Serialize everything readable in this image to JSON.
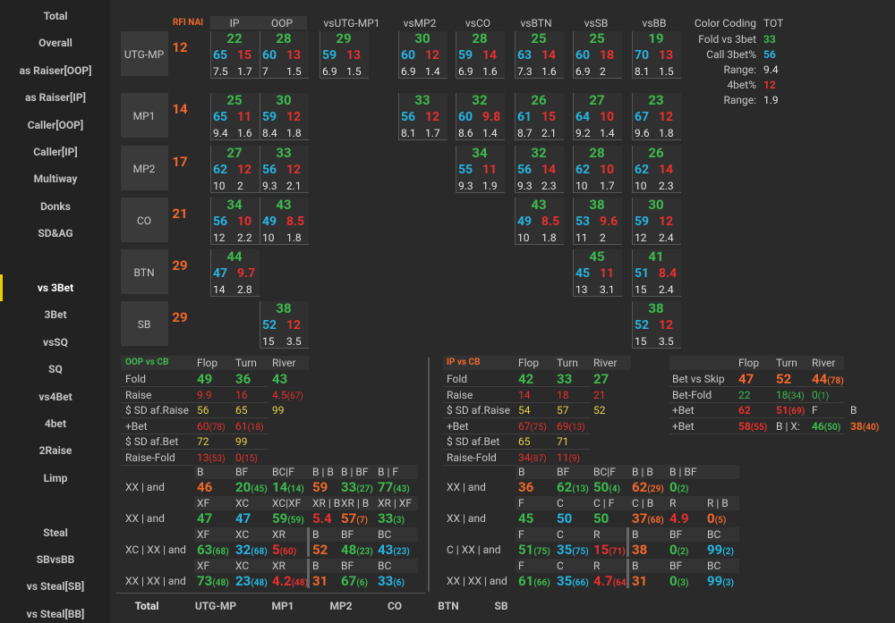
{
  "sidebar": {
    "groups": [
      [
        "Total",
        "Overall",
        "as Raiser[OOP]",
        "as Raiser[IP]",
        "Caller[OOP]",
        "Caller[IP]",
        "Multiway",
        "Donks",
        "SD&AG"
      ],
      [
        "vs 3Bet",
        "3Bet",
        "vsSQ",
        "SQ",
        "vs4Bet",
        "4bet",
        "2Raise",
        "Limp"
      ],
      [
        "Steal",
        "SBvsBB",
        "vs Steal[SB]",
        "vs Steal[BB]"
      ]
    ],
    "selected": [
      1,
      0
    ]
  },
  "matrix": {
    "rfi_label": "RFI NAI",
    "columns": [
      "IP",
      "OOP",
      "vsUTG-MP1",
      "vsMP2",
      "vsCO",
      "vsBTN",
      "vsSB",
      "vsBB"
    ],
    "rows": [
      {
        "label": "UTG-MP",
        "rfi": 12,
        "cells": [
          {
            "fold": 22,
            "call": 65,
            "fourbet": 15,
            "call_range": 7.5,
            "fourbet_range": 1.7
          },
          {
            "fold": 28,
            "call": 60,
            "fourbet": 13,
            "call_range": 7,
            "fourbet_range": 1.5
          },
          {
            "fold": 29,
            "call": 59,
            "fourbet": 13,
            "call_range": 6.9,
            "fourbet_range": 1.5
          },
          {
            "fold": 30,
            "call": 60,
            "fourbet": 12,
            "call_range": 6.9,
            "fourbet_range": 1.4
          },
          {
            "fold": 28,
            "call": 59,
            "fourbet": 14,
            "call_range": 6.9,
            "fourbet_range": 1.6
          },
          {
            "fold": 25,
            "call": 63,
            "fourbet": 14,
            "call_range": 7.3,
            "fourbet_range": 1.6
          },
          {
            "fold": 25,
            "call": 60,
            "fourbet": 18,
            "call_range": 6.9,
            "fourbet_range": 2
          },
          {
            "fold": 19,
            "call": 70,
            "fourbet": 13,
            "call_range": 8.1,
            "fourbet_range": 1.5
          }
        ]
      },
      {
        "label": "MP1",
        "rfi": 14,
        "cells": [
          {
            "fold": 25,
            "call": 65,
            "fourbet": 11,
            "call_range": 9.4,
            "fourbet_range": 1.6
          },
          {
            "fold": 30,
            "call": 59,
            "fourbet": 12,
            "call_range": 8.4,
            "fourbet_range": 1.8
          },
          null,
          {
            "fold": 33,
            "call": 56,
            "fourbet": 12,
            "call_range": 8.1,
            "fourbet_range": 1.7
          },
          {
            "fold": 32,
            "call": 60,
            "fourbet": 9.8,
            "call_range": 8.6,
            "fourbet_range": 1.4
          },
          {
            "fold": 26,
            "call": 61,
            "fourbet": 15,
            "call_range": 8.7,
            "fourbet_range": 2.1
          },
          {
            "fold": 27,
            "call": 64,
            "fourbet": 10,
            "call_range": 9.2,
            "fourbet_range": 1.4
          },
          {
            "fold": 23,
            "call": 67,
            "fourbet": 12,
            "call_range": 9.6,
            "fourbet_range": 1.8
          }
        ]
      },
      {
        "label": "MP2",
        "rfi": 17,
        "cells": [
          {
            "fold": 27,
            "call": 62,
            "fourbet": 12,
            "call_range": 10,
            "fourbet_range": 2
          },
          {
            "fold": 33,
            "call": 56,
            "fourbet": 12,
            "call_range": 9.3,
            "fourbet_range": 2.1
          },
          null,
          null,
          {
            "fold": 34,
            "call": 55,
            "fourbet": 11,
            "call_range": 9.3,
            "fourbet_range": 1.9
          },
          {
            "fold": 32,
            "call": 56,
            "fourbet": 14,
            "call_range": 9.3,
            "fourbet_range": 2.3
          },
          {
            "fold": 28,
            "call": 62,
            "fourbet": 10,
            "call_range": 10,
            "fourbet_range": 1.7
          },
          {
            "fold": 26,
            "call": 62,
            "fourbet": 14,
            "call_range": 10,
            "fourbet_range": 2.3
          }
        ]
      },
      {
        "label": "CO",
        "rfi": 21,
        "cells": [
          {
            "fold": 34,
            "call": 56,
            "fourbet": 10,
            "call_range": 12,
            "fourbet_range": 2.2
          },
          {
            "fold": 43,
            "call": 49,
            "fourbet": 8.5,
            "call_range": 10,
            "fourbet_range": 1.8
          },
          null,
          null,
          null,
          {
            "fold": 43,
            "call": 49,
            "fourbet": 8.5,
            "call_range": 10,
            "fourbet_range": 1.8
          },
          {
            "fold": 38,
            "call": 53,
            "fourbet": 9.6,
            "call_range": 11,
            "fourbet_range": 2
          },
          {
            "fold": 30,
            "call": 59,
            "fourbet": 12,
            "call_range": 12,
            "fourbet_range": 2.4
          }
        ]
      },
      {
        "label": "BTN",
        "rfi": 29,
        "cells": [
          {
            "fold": 44,
            "call": 47,
            "fourbet": 9.7,
            "call_range": 14,
            "fourbet_range": 2.8
          },
          null,
          null,
          null,
          null,
          null,
          {
            "fold": 45,
            "call": 45,
            "fourbet": 11,
            "call_range": 13,
            "fourbet_range": 3.1
          },
          {
            "fold": 41,
            "call": 51,
            "fourbet": 8.4,
            "call_range": 15,
            "fourbet_range": 2.4
          }
        ]
      },
      {
        "label": "SB",
        "rfi": 29,
        "cells": [
          null,
          {
            "fold": 38,
            "call": 52,
            "fourbet": 12,
            "call_range": 15,
            "fourbet_range": 3.5
          },
          null,
          null,
          null,
          null,
          null,
          {
            "fold": 38,
            "call": 52,
            "fourbet": 12,
            "call_range": 15,
            "fourbet_range": 3.5
          }
        ]
      }
    ]
  },
  "legend": {
    "title": "Color Coding",
    "total": "TOT",
    "items": [
      {
        "label": "Fold vs 3bet",
        "value": 33,
        "color": "green"
      },
      {
        "label": "Call 3bet%",
        "value": 56,
        "color": "blue"
      },
      {
        "label": "Range:",
        "value": 9.4,
        "color": "white"
      },
      {
        "label": "4bet%",
        "value": 12,
        "color": "red"
      },
      {
        "label": "Range:",
        "value": 1.9,
        "color": "white"
      }
    ]
  },
  "panels": [
    {
      "title": "OOP vs CB",
      "title_color": "green",
      "columns": [
        "Flop",
        "Turn",
        "River"
      ],
      "rows": [
        {
          "label": "Fold",
          "color": "green",
          "big": true,
          "values": [
            49,
            36,
            43
          ]
        },
        {
          "label": "Raise",
          "color": "red",
          "values": [
            9.9,
            16,
            "4.5(67)"
          ]
        },
        {
          "label": "$ SD af.Raise",
          "color": "yellow",
          "values": [
            56,
            65,
            99
          ]
        },
        {
          "label": "+Bet",
          "color": "red",
          "values": [
            "60(78)",
            "61(18)"
          ]
        },
        {
          "label": "$ SD af.Bet",
          "color": "yellow",
          "values": [
            72,
            99
          ]
        },
        {
          "label": "Raise-Fold",
          "color": "red",
          "values": [
            "13(53)",
            "0(15)"
          ]
        }
      ],
      "grid": [
        {
          "headers": [
            "B",
            "BF",
            "BC|F",
            "B | B",
            "B | BF",
            "B | F"
          ],
          "label": "XX | and",
          "cells": [
            {
              "t": "46",
              "c": "orange"
            },
            {
              "t": "20(45)",
              "c": "green"
            },
            {
              "t": "14(14)",
              "c": "green"
            },
            {
              "t": "59",
              "c": "orange"
            },
            {
              "t": "33(27)",
              "c": "green"
            },
            {
              "t": "77(43)",
              "c": "green"
            }
          ]
        },
        {
          "headers": [
            "XF",
            "XC",
            "XC|XF",
            "XR | B",
            "XR | B",
            "XR | XF"
          ],
          "label": "XX | and",
          "cells": [
            {
              "t": "47",
              "c": "green"
            },
            {
              "t": "47",
              "c": "blue"
            },
            {
              "t": "59(59)",
              "c": "green"
            },
            {
              "t": "5.4",
              "c": "red"
            },
            {
              "t": "57(7)",
              "c": "orange"
            },
            {
              "t": "33(3)",
              "c": "green"
            }
          ]
        },
        {
          "headers": [
            "XF",
            "XC",
            "XR",
            "B",
            "BF",
            "BC"
          ],
          "label": "XC | XX | and",
          "cells": [
            {
              "t": "63(68)",
              "c": "green"
            },
            {
              "t": "32(68)",
              "c": "blue"
            },
            {
              "t": "5(60)",
              "c": "red"
            },
            {
              "t": "52",
              "c": "orange"
            },
            {
              "t": "48(23)",
              "c": "green"
            },
            {
              "t": "43(23)",
              "c": "blue"
            }
          ]
        },
        {
          "headers": [
            "XF",
            "XC",
            "XR",
            "B",
            "BF",
            "BC"
          ],
          "label": "XX | XX | and",
          "cells": [
            {
              "t": "73(48)",
              "c": "green"
            },
            {
              "t": "23(48)",
              "c": "blue"
            },
            {
              "t": "4.2(48)",
              "c": "red"
            },
            {
              "t": "31",
              "c": "orange"
            },
            {
              "t": "67(6)",
              "c": "green"
            },
            {
              "t": "33(6)",
              "c": "blue"
            }
          ]
        }
      ]
    },
    {
      "title": "IP vs CB",
      "title_color": "orange",
      "columns": [
        "Flop",
        "Turn",
        "River"
      ],
      "rows": [
        {
          "label": "Fold",
          "color": "green",
          "big": true,
          "values": [
            42,
            33,
            27
          ]
        },
        {
          "label": "Raise",
          "color": "red",
          "values": [
            14,
            18,
            21
          ]
        },
        {
          "label": "$ SD af.Raise",
          "color": "yellow",
          "values": [
            54,
            57,
            52
          ]
        },
        {
          "label": "+Bet",
          "color": "red",
          "values": [
            "67(75)",
            "69(13)"
          ]
        },
        {
          "label": "$ SD af.Bet",
          "color": "yellow",
          "values": [
            65,
            71
          ]
        },
        {
          "label": "Raise-Fold",
          "color": "red",
          "values": [
            "34(87)",
            "11(9)"
          ]
        }
      ],
      "grid": [
        {
          "headers": [
            "B",
            "BF",
            "BC|F",
            "B | B",
            "B | BF"
          ],
          "label": "XX | and",
          "cells": [
            {
              "t": "36",
              "c": "orange"
            },
            {
              "t": "62(13)",
              "c": "green"
            },
            {
              "t": "50(4)",
              "c": "green"
            },
            {
              "t": "62(29)",
              "c": "orange"
            },
            {
              "t": "0(2)",
              "c": "green"
            }
          ]
        },
        {
          "headers": [
            "F",
            "C",
            "C | F",
            "C | B",
            "R",
            "R | B"
          ],
          "label": "XX | and",
          "cells": [
            {
              "t": "45",
              "c": "green"
            },
            {
              "t": "50",
              "c": "blue"
            },
            {
              "t": "50",
              "c": "green"
            },
            {
              "t": "37(68)",
              "c": "orange"
            },
            {
              "t": "4.9",
              "c": "red"
            },
            {
              "t": "0(5)",
              "c": "orange"
            }
          ]
        },
        {
          "headers": [
            "F",
            "C",
            "R",
            "B",
            "BF",
            "BC"
          ],
          "label": "C | XX | and",
          "cells": [
            {
              "t": "51(75)",
              "c": "green"
            },
            {
              "t": "35(75)",
              "c": "blue"
            },
            {
              "t": "15(71)",
              "c": "red"
            },
            {
              "t": "38",
              "c": "orange"
            },
            {
              "t": "0(2)",
              "c": "green"
            },
            {
              "t": "99(2)",
              "c": "blue"
            }
          ]
        },
        {
          "headers": [
            "F",
            "C",
            "R",
            "B",
            "BF",
            "BC"
          ],
          "label": "XX | XX | and",
          "cells": [
            {
              "t": "61(66)",
              "c": "green"
            },
            {
              "t": "35(66)",
              "c": "blue"
            },
            {
              "t": "4.7(64)",
              "c": "red"
            },
            {
              "t": "31",
              "c": "orange"
            },
            {
              "t": "0(3)",
              "c": "green"
            },
            {
              "t": "99(3)",
              "c": "blue"
            }
          ]
        }
      ]
    },
    {
      "columns": [
        "Flop",
        "Turn",
        "River"
      ],
      "rows": [
        {
          "label": "Bet vs Skip",
          "color": "orange",
          "big": true,
          "values": [
            47,
            52,
            "44(78)"
          ]
        },
        {
          "label": "Bet-Fold",
          "color": "green",
          "values": [
            22,
            "18(34)",
            "0(1)"
          ]
        },
        {
          "label": "+Bet",
          "cells": [
            {
              "t": "62",
              "c": "red"
            },
            {
              "t": "51(69)",
              "c": "red"
            },
            {
              "t": "F",
              "c": "gray"
            },
            {
              "t": "B",
              "c": "gray"
            }
          ]
        },
        {
          "label": "+Bet",
          "cells": [
            {
              "t": "58(55)",
              "c": "red"
            },
            {
              "t": "B | X:",
              "c": "gray"
            },
            {
              "t": "46(50)",
              "c": "green"
            },
            {
              "t": "38(40)",
              "c": "orange"
            }
          ]
        }
      ]
    }
  ],
  "tabs": {
    "items": [
      "Total",
      "UTG-MP",
      "MP1",
      "MP2",
      "CO",
      "BTN",
      "SB"
    ],
    "active": 0
  }
}
